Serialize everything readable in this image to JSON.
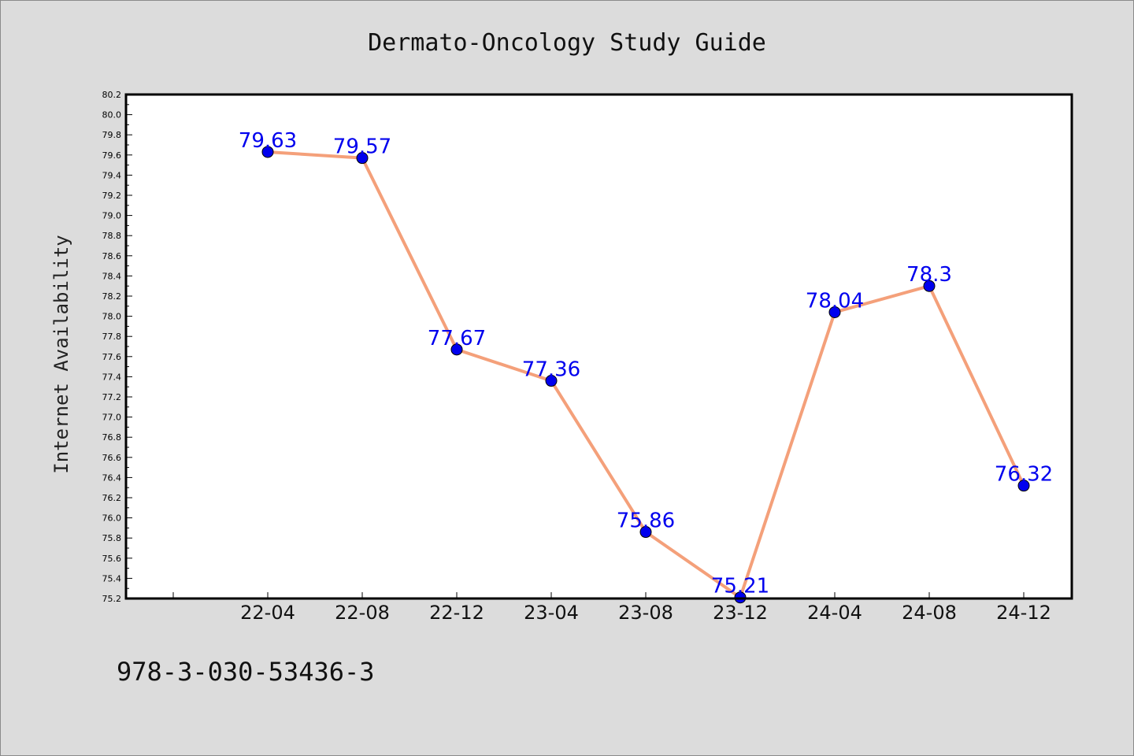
{
  "footer": {
    "identifier": "978-3-030-53436-3"
  },
  "colors": {
    "line": "#f4a07a",
    "marker": "#0000ee",
    "label": "#0000ee",
    "background": "#dcdcdc",
    "plot_bg": "#ffffff"
  },
  "chart_data": {
    "type": "line",
    "title": "Dermato-Oncology Study Guide",
    "xlabel": "",
    "ylabel": "Internet Availability",
    "categories": [
      "22-04",
      "22-08",
      "22-12",
      "23-04",
      "23-08",
      "23-12",
      "24-04",
      "24-08",
      "24-12"
    ],
    "series": [
      {
        "values": [
          79.63,
          79.57,
          77.67,
          77.36,
          75.86,
          75.21,
          78.04,
          78.3,
          76.32
        ]
      }
    ],
    "data_labels": [
      "79.63",
      "79.57",
      "77.67",
      "77.36",
      "75.86",
      "75.21",
      "78.04",
      "78.3",
      "76.32"
    ],
    "yticks": [
      "75.2",
      "75.4",
      "75.6",
      "75.8",
      "76.0",
      "76.2",
      "76.4",
      "76.6",
      "76.8",
      "77.0",
      "77.2",
      "77.4",
      "77.6",
      "77.8",
      "78.0",
      "78.2",
      "78.4",
      "78.6",
      "78.8",
      "79.0",
      "79.2",
      "79.4",
      "79.6",
      "79.8",
      "80.0",
      "80.2"
    ],
    "ylim": [
      75.2,
      80.2
    ],
    "grid": false,
    "legend": "none"
  }
}
